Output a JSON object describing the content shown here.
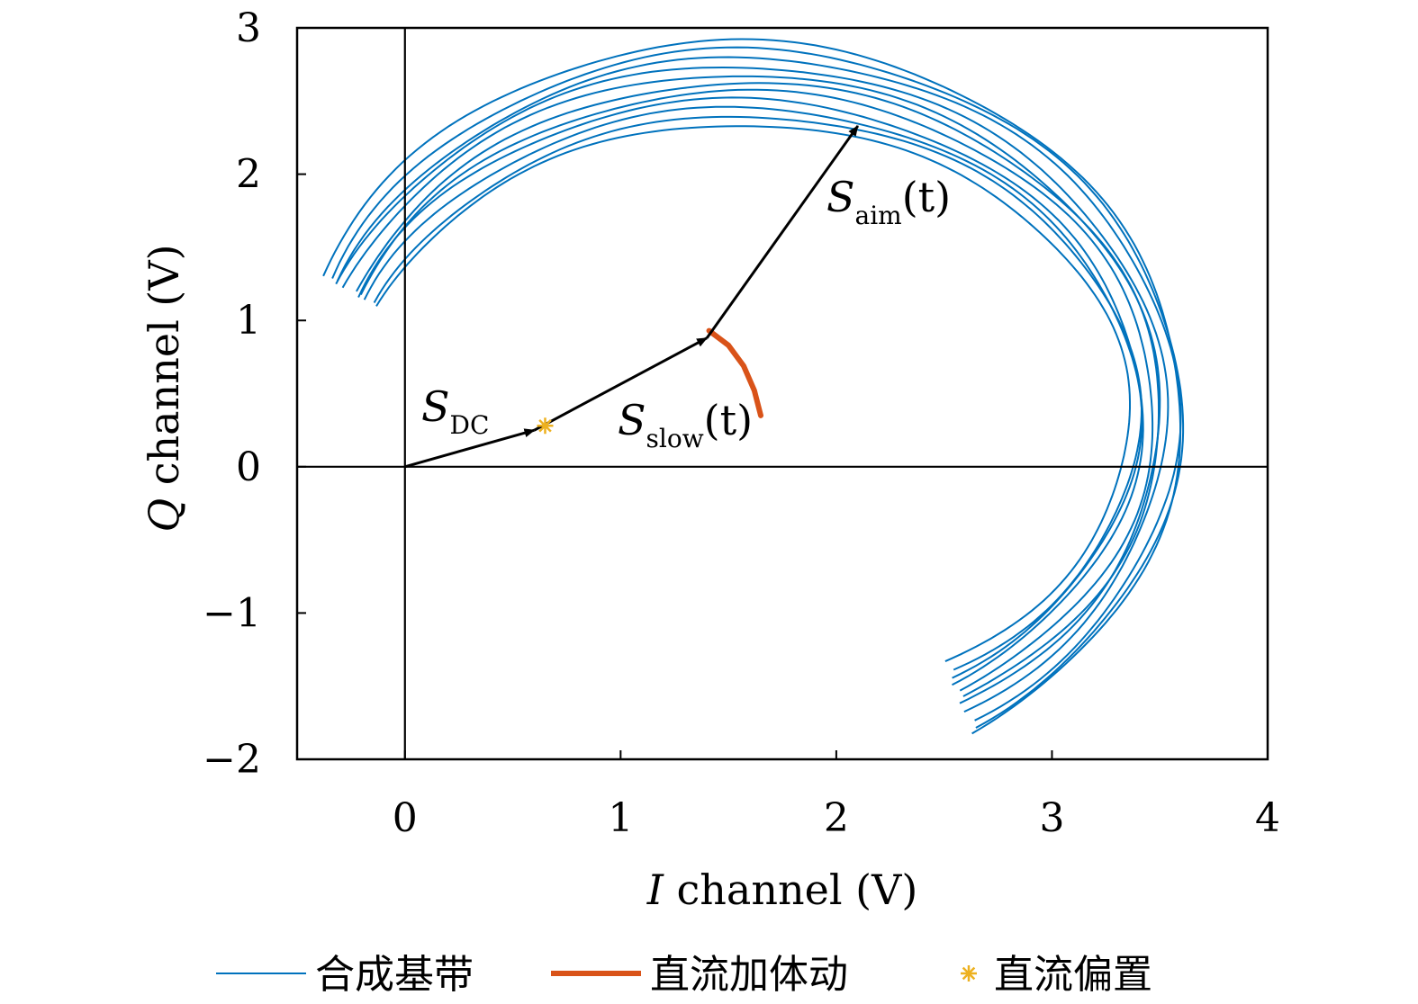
{
  "chart_data": {
    "type": "line",
    "xlabel": {
      "var": "I",
      "text": " channel (V)"
    },
    "ylabel": {
      "var": "Q",
      "text": " channel (V)"
    },
    "xlim": [
      -0.5,
      4
    ],
    "ylim": [
      -2,
      3
    ],
    "xticks": [
      0,
      1,
      2,
      3,
      4
    ],
    "yticks": [
      -2,
      -1,
      0,
      1,
      2,
      3
    ],
    "xtick_labels": [
      "0",
      "1",
      "2",
      "3",
      "4"
    ],
    "ytick_labels": [
      "−2",
      "−1",
      "0",
      "1",
      "2",
      "3"
    ],
    "grid": false,
    "zero_lines": true,
    "colors": {
      "baseband": "#0072BD",
      "dc_motion": "#D95319",
      "dc_bias": "#EDB120",
      "arrow": "#000000"
    },
    "series": [
      {
        "name": "合成基带",
        "type": "family_of_arcs",
        "count": 11,
        "center": [
          1.55,
          0.35
        ],
        "radius_x_range": [
          1.81,
          2.07
        ],
        "radius_y_range": [
          1.99,
          2.56
        ],
        "angle_start_deg": 158,
        "angle_end_deg": -58
      },
      {
        "name": "直流加体动",
        "type": "arc",
        "points": [
          [
            1.41,
            0.93
          ],
          [
            1.5,
            0.83
          ],
          [
            1.57,
            0.69
          ],
          [
            1.62,
            0.52
          ],
          [
            1.65,
            0.35
          ]
        ]
      },
      {
        "name": "直流偏置",
        "type": "marker",
        "point": [
          0.65,
          0.28
        ]
      }
    ],
    "vectors": [
      {
        "id": "s_dc",
        "from": [
          0,
          0
        ],
        "to": [
          0.6,
          0.25
        ]
      },
      {
        "id": "s_slow",
        "from": [
          0.6,
          0.25
        ],
        "to": [
          1.4,
          0.88
        ]
      },
      {
        "id": "s_aim",
        "from": [
          1.4,
          0.88
        ],
        "to": [
          2.1,
          2.33
        ]
      }
    ],
    "annotations": {
      "s_dc": {
        "main": "S",
        "sub": "DC",
        "tail": ""
      },
      "s_slow": {
        "main": "S",
        "sub": "slow",
        "tail": "(t)"
      },
      "s_aim": {
        "main": "S",
        "sub": "aim",
        "tail": "(t)"
      }
    },
    "legend": {
      "position": "bottom",
      "items": [
        {
          "label": "合成基带",
          "kind": "line",
          "color": "#0072BD"
        },
        {
          "label": "直流加体动",
          "kind": "thick-line",
          "color": "#D95319"
        },
        {
          "label": "直流偏置",
          "kind": "star",
          "color": "#EDB120"
        }
      ]
    }
  }
}
